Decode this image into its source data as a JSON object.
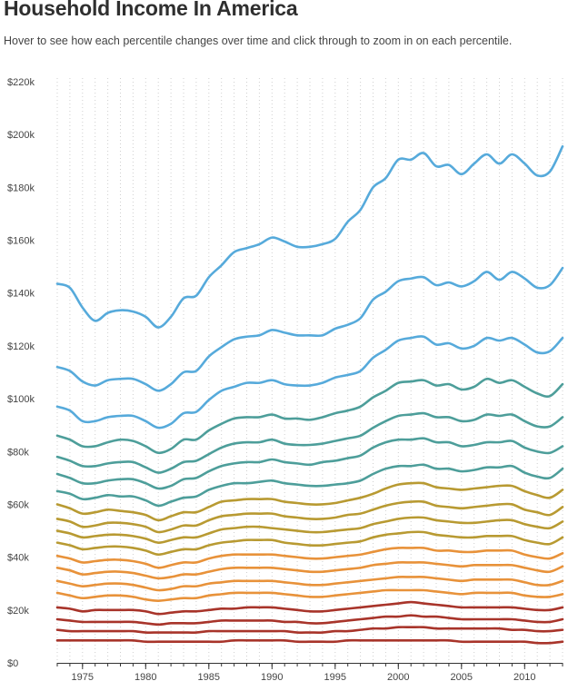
{
  "title": "Household Income In America",
  "subtitle": "Hover to see how each percentile changes over time and click through to zoom in on each percentile.",
  "chart_data": {
    "type": "line",
    "title": "Household Income In America",
    "xlabel": "",
    "ylabel": "",
    "xlim": [
      1973,
      2013
    ],
    "ylim": [
      0,
      220000
    ],
    "x_ticks": [
      1975,
      1980,
      1985,
      1990,
      1995,
      2000,
      2005,
      2010
    ],
    "x_tick_labels": [
      "1975",
      "1980",
      "1985",
      "1990",
      "1995",
      "2000",
      "2005",
      "2010"
    ],
    "y_ticks": [
      0,
      20000,
      40000,
      60000,
      80000,
      100000,
      120000,
      140000,
      160000,
      180000,
      200000,
      220000
    ],
    "y_tick_labels": [
      "$0",
      "$20k",
      "$40k",
      "$60k",
      "$80k",
      "$100k",
      "$120k",
      "$140k",
      "$160k",
      "$180k",
      "$200k",
      "$220k"
    ],
    "grid": "vertical dotted",
    "x": [
      1973,
      1974,
      1975,
      1976,
      1977,
      1978,
      1979,
      1980,
      1981,
      1982,
      1983,
      1984,
      1985,
      1986,
      1987,
      1988,
      1989,
      1990,
      1991,
      1992,
      1993,
      1994,
      1995,
      1996,
      1997,
      1998,
      1999,
      2000,
      2001,
      2002,
      2003,
      2004,
      2005,
      2006,
      2007,
      2008,
      2009,
      2010,
      2011,
      2012,
      2013
    ],
    "series": [
      {
        "color": "#56aadb",
        "values": [
          143500,
          142000,
          134500,
          129500,
          132500,
          133500,
          133000,
          131000,
          127000,
          131000,
          138000,
          139000,
          146000,
          150500,
          155500,
          157000,
          158500,
          161000,
          159500,
          157500,
          157500,
          158500,
          160500,
          167000,
          171500,
          180000,
          183500,
          190500,
          190500,
          193000,
          188000,
          188500,
          185000,
          189000,
          192500,
          189000,
          192500,
          189000,
          184500,
          186000,
          195500
        ]
      },
      {
        "color": "#56aadb",
        "values": [
          112000,
          110500,
          106500,
          105000,
          107000,
          107500,
          107500,
          105500,
          103000,
          105500,
          110000,
          110500,
          116000,
          119500,
          122500,
          123500,
          124000,
          126000,
          125000,
          124000,
          124000,
          124000,
          126500,
          128000,
          130500,
          137500,
          140500,
          144500,
          145500,
          146000,
          143000,
          144000,
          142500,
          144500,
          148000,
          145000,
          148000,
          145500,
          142000,
          143000,
          149500
        ]
      },
      {
        "color": "#56aadb",
        "values": [
          97000,
          95500,
          91500,
          91500,
          93000,
          93500,
          93500,
          91500,
          89000,
          90500,
          94500,
          95000,
          99500,
          103000,
          104500,
          106000,
          106000,
          107000,
          105500,
          105000,
          105000,
          106000,
          108000,
          109000,
          110500,
          115500,
          118500,
          122000,
          123000,
          123500,
          120500,
          121000,
          119000,
          120000,
          123000,
          122000,
          123000,
          120500,
          117500,
          118000,
          123000
        ]
      },
      {
        "color": "#4d9e9a",
        "values": [
          86000,
          84500,
          82000,
          82000,
          83500,
          84500,
          84000,
          82000,
          79500,
          81000,
          84500,
          84500,
          88000,
          90500,
          92500,
          93000,
          93000,
          94000,
          92500,
          92500,
          92000,
          93000,
          94500,
          95500,
          97000,
          100500,
          103000,
          106000,
          106500,
          107000,
          105000,
          105500,
          103500,
          104500,
          107500,
          106000,
          107000,
          104500,
          102000,
          101000,
          105500
        ]
      },
      {
        "color": "#4d9e9a",
        "values": [
          78000,
          76500,
          74500,
          74500,
          75500,
          76000,
          76000,
          74000,
          72000,
          73500,
          76000,
          76500,
          79000,
          81500,
          83000,
          83500,
          83500,
          84500,
          83000,
          82500,
          82500,
          83000,
          84000,
          85000,
          86000,
          89000,
          91500,
          93500,
          94000,
          94500,
          93000,
          93000,
          91500,
          92000,
          94000,
          93500,
          94000,
          91500,
          89500,
          89500,
          93000
        ]
      },
      {
        "color": "#4d9e9a",
        "values": [
          71500,
          70000,
          68000,
          68000,
          69000,
          69500,
          69500,
          68000,
          66000,
          67000,
          69500,
          70000,
          72500,
          74500,
          75500,
          76000,
          76000,
          77000,
          76000,
          75500,
          75000,
          76000,
          76500,
          77500,
          78500,
          81500,
          83500,
          84500,
          84500,
          85000,
          83500,
          83500,
          82000,
          82500,
          83500,
          83500,
          84000,
          81500,
          80000,
          79500,
          82000
        ]
      },
      {
        "color": "#4d9e9a",
        "values": [
          65000,
          64000,
          62000,
          62500,
          63500,
          63000,
          63000,
          61500,
          59500,
          61000,
          62500,
          63000,
          65500,
          67000,
          68000,
          68000,
          68500,
          69000,
          68000,
          67500,
          67000,
          67000,
          67500,
          68000,
          69000,
          71500,
          73500,
          74500,
          74500,
          75000,
          73500,
          73500,
          72500,
          73000,
          74000,
          74000,
          74500,
          72000,
          70500,
          70000,
          73500
        ]
      },
      {
        "color": "#b89a32",
        "values": [
          60000,
          58500,
          56500,
          57000,
          58000,
          57500,
          57000,
          56000,
          54000,
          55500,
          57000,
          57000,
          59000,
          61000,
          61500,
          62000,
          62000,
          62000,
          61000,
          60500,
          60000,
          60000,
          60500,
          61500,
          62500,
          64000,
          66000,
          67500,
          68000,
          68000,
          66500,
          66000,
          65500,
          66000,
          66500,
          67000,
          67000,
          65000,
          63500,
          62500,
          65500
        ]
      },
      {
        "color": "#b89a32",
        "values": [
          54500,
          53500,
          51500,
          52000,
          53000,
          53000,
          52500,
          51500,
          49500,
          50500,
          52000,
          52000,
          54000,
          55500,
          56000,
          56500,
          56500,
          56500,
          55500,
          55000,
          54500,
          54500,
          55000,
          56000,
          56500,
          58000,
          59500,
          60500,
          61000,
          61000,
          59500,
          59000,
          58500,
          59000,
          59500,
          60000,
          60000,
          58000,
          57000,
          56000,
          59000
        ]
      },
      {
        "color": "#b89a32",
        "values": [
          50000,
          49000,
          47500,
          48000,
          48500,
          48500,
          48000,
          47000,
          45500,
          46500,
          47500,
          47500,
          49000,
          50500,
          51000,
          51500,
          51500,
          51000,
          50500,
          50000,
          49500,
          49500,
          50000,
          50500,
          51000,
          52500,
          53500,
          54500,
          55000,
          55000,
          54000,
          53500,
          53000,
          53000,
          53500,
          54000,
          54000,
          52500,
          51500,
          51000,
          53500
        ]
      },
      {
        "color": "#b89a32",
        "values": [
          45500,
          44500,
          43000,
          43500,
          44000,
          44000,
          43500,
          42500,
          41000,
          42000,
          43000,
          43000,
          44500,
          45500,
          46000,
          46500,
          46500,
          46500,
          45500,
          45000,
          44500,
          44500,
          45000,
          45500,
          46000,
          47500,
          48500,
          49000,
          49500,
          49500,
          48500,
          48000,
          47500,
          47500,
          48000,
          48000,
          48000,
          46500,
          45500,
          45000,
          47500
        ]
      },
      {
        "color": "#e8923a",
        "values": [
          40500,
          39500,
          38000,
          38500,
          39000,
          39000,
          38500,
          37500,
          36000,
          37000,
          38000,
          38000,
          39500,
          40500,
          41000,
          41000,
          41000,
          41000,
          40500,
          40000,
          39500,
          39500,
          40000,
          40500,
          41000,
          42000,
          43000,
          43500,
          43500,
          43500,
          42500,
          42500,
          42000,
          42000,
          42500,
          42500,
          42500,
          41000,
          40000,
          39500,
          41500
        ]
      },
      {
        "color": "#e8923a",
        "values": [
          36000,
          35000,
          33500,
          34000,
          34500,
          34500,
          34000,
          33000,
          32000,
          32500,
          33500,
          33500,
          34500,
          35500,
          36000,
          36000,
          36000,
          36000,
          35500,
          35000,
          34500,
          34500,
          35000,
          35500,
          36000,
          37000,
          37500,
          38000,
          38000,
          38000,
          37500,
          37000,
          36500,
          37000,
          37000,
          37000,
          37000,
          36000,
          35000,
          34500,
          36500
        ]
      },
      {
        "color": "#e8923a",
        "values": [
          31000,
          30000,
          29000,
          29500,
          30000,
          30000,
          29500,
          28500,
          27500,
          28000,
          29000,
          29000,
          30000,
          30500,
          31000,
          31000,
          31000,
          31000,
          30500,
          30000,
          29500,
          29500,
          30000,
          30500,
          31000,
          31500,
          32000,
          32500,
          32500,
          32500,
          32000,
          31500,
          31000,
          31500,
          31500,
          31500,
          31500,
          30500,
          29500,
          29500,
          31000
        ]
      },
      {
        "color": "#e8923a",
        "values": [
          26500,
          25500,
          24500,
          25000,
          25500,
          25500,
          25000,
          24000,
          23500,
          24000,
          24500,
          24500,
          25500,
          26000,
          26500,
          26500,
          26500,
          26500,
          26000,
          25500,
          25000,
          25000,
          25500,
          26000,
          26500,
          27000,
          27500,
          27500,
          27500,
          27500,
          27000,
          26500,
          26000,
          26500,
          26500,
          26500,
          26500,
          25500,
          25000,
          25000,
          26000
        ]
      },
      {
        "color": "#a8342a",
        "values": [
          21000,
          20500,
          19500,
          20000,
          20000,
          20000,
          20000,
          19500,
          18500,
          19000,
          19500,
          19500,
          20000,
          20500,
          20500,
          21000,
          21000,
          21000,
          20500,
          20000,
          19500,
          19500,
          20000,
          20500,
          21000,
          21500,
          22000,
          22500,
          23000,
          22500,
          22000,
          21500,
          21000,
          21000,
          21000,
          21000,
          21000,
          20500,
          20000,
          20000,
          21000
        ]
      },
      {
        "color": "#a8342a",
        "values": [
          16500,
          16000,
          15500,
          15500,
          15500,
          15500,
          15500,
          15000,
          14500,
          15000,
          15000,
          15000,
          15500,
          16000,
          16000,
          16000,
          16000,
          16000,
          15500,
          15500,
          15000,
          15000,
          15500,
          16000,
          16500,
          17000,
          17500,
          17500,
          18000,
          17500,
          17500,
          17000,
          16500,
          16500,
          16500,
          16500,
          16500,
          16000,
          15500,
          15500,
          16500
        ]
      },
      {
        "color": "#a8342a",
        "values": [
          12500,
          12000,
          12000,
          12000,
          12000,
          12000,
          12000,
          11500,
          11500,
          11500,
          11500,
          11500,
          12000,
          12000,
          12000,
          12000,
          12000,
          12000,
          12000,
          11500,
          11500,
          11500,
          12000,
          12000,
          12500,
          13000,
          13000,
          13500,
          13500,
          13500,
          13000,
          13000,
          13000,
          13000,
          13000,
          13000,
          12500,
          12500,
          12000,
          12000,
          12500
        ]
      },
      {
        "color": "#a8342a",
        "values": [
          8500,
          8500,
          8500,
          8500,
          8500,
          8500,
          8500,
          8000,
          8000,
          8000,
          8000,
          8000,
          8000,
          8000,
          8500,
          8500,
          8500,
          8500,
          8500,
          8000,
          8000,
          8000,
          8000,
          8500,
          8500,
          8500,
          8500,
          8500,
          8500,
          8500,
          8500,
          8500,
          8000,
          8000,
          8000,
          8000,
          8000,
          8000,
          7500,
          7500,
          8000
        ]
      }
    ]
  }
}
